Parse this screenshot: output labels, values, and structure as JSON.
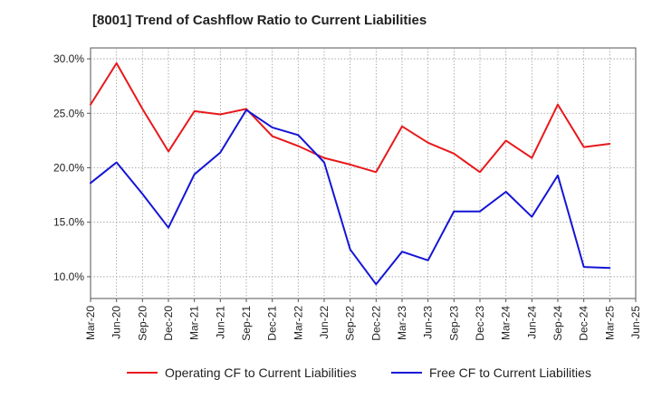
{
  "chart_data": {
    "type": "line",
    "title": "[8001]  Trend of Cashflow Ratio to Current Liabilities",
    "xlabel": "",
    "ylabel": "",
    "categories": [
      "Mar-20",
      "Jun-20",
      "Sep-20",
      "Dec-20",
      "Mar-21",
      "Jun-21",
      "Sep-21",
      "Dec-21",
      "Mar-22",
      "Jun-22",
      "Sep-22",
      "Dec-22",
      "Mar-23",
      "Jun-23",
      "Sep-23",
      "Dec-23",
      "Mar-24",
      "Jun-24",
      "Sep-24",
      "Dec-24",
      "Mar-25",
      "Jun-25"
    ],
    "yticks": [
      "10.0%",
      "15.0%",
      "20.0%",
      "25.0%",
      "30.0%"
    ],
    "ylim": [
      8.0,
      31.0
    ],
    "grid": true,
    "legend_position": "bottom",
    "series": [
      {
        "name": "Operating CF to Current Liabilities",
        "color": "#e8191c",
        "values": [
          25.8,
          29.6,
          25.4,
          21.5,
          25.2,
          24.9,
          25.4,
          22.9,
          22.0,
          20.9,
          20.3,
          19.6,
          23.8,
          22.3,
          21.3,
          19.6,
          22.5,
          20.9,
          25.8,
          21.9,
          22.2,
          null
        ]
      },
      {
        "name": "Free CF to Current Liabilities",
        "color": "#1515d6",
        "values": [
          18.6,
          20.5,
          17.6,
          14.5,
          19.4,
          21.4,
          25.3,
          23.7,
          23.0,
          20.5,
          12.5,
          9.3,
          12.3,
          11.5,
          16.0,
          16.0,
          17.8,
          15.5,
          19.3,
          10.9,
          10.8,
          null
        ]
      }
    ]
  }
}
